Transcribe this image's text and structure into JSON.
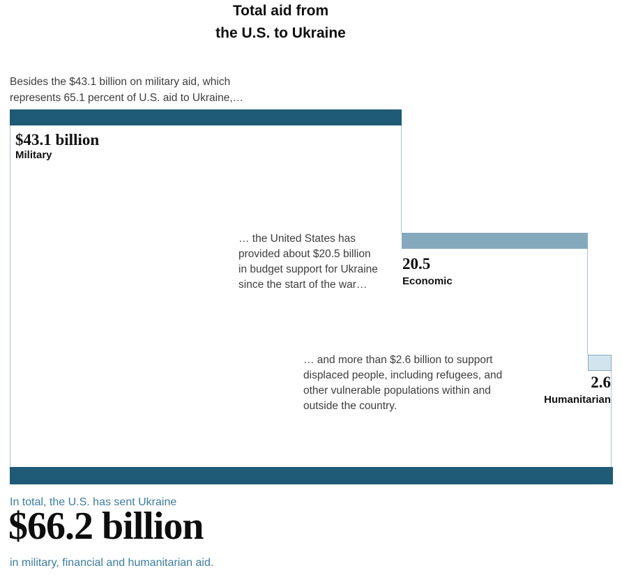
{
  "title": {
    "line1": "Total aid from",
    "line2": "the U.S. to Ukraine"
  },
  "intro": {
    "lines": [
      "Besides the $43.1 billion on military aid, which",
      "represents 65.1 percent of U.S. aid to Ukraine,…"
    ]
  },
  "military": {
    "value_label": "$43.1 billion",
    "category": "Military"
  },
  "economic": {
    "value_label": "20.5",
    "category": "Economic",
    "annotation": [
      "… the United States has",
      "provided about $20.5 billion",
      "in budget support for Ukraine",
      "since the start of the war…"
    ]
  },
  "humanitarian": {
    "value_label": "2.6",
    "category": "Humanitarian",
    "annotation": [
      "… and more than $2.6 billion to support",
      "displaced people, including refugees, and",
      "other vulnerable populations within and",
      "outside the country."
    ]
  },
  "summary": {
    "lead": "In total, the U.S. has sent Ukraine",
    "amount": "$66.2 billion",
    "tail": "in military, financial and humanitarian aid."
  },
  "colors": {
    "dark_teal_bar": "#1f5b76",
    "economic_bar": "#84a9bc",
    "humanitarian_bar_fill": "#d2e5ef",
    "humanitarian_bar_border": "#84a9bc",
    "connector_outline": "#a8c0cb",
    "summary_text_teal": "#3a7d9e",
    "annotation_text_gray": "#3d3d3d",
    "label_black": "#111111"
  },
  "chart_data": {
    "type": "bar",
    "subtype": "proportional-cascading-stacked-bar",
    "orientation": "horizontal",
    "title": "Total aid from the U.S. to Ukraine",
    "categories": [
      "Military",
      "Economic",
      "Humanitarian"
    ],
    "values": [
      43.1,
      20.5,
      2.6
    ],
    "value_labels": [
      "$43.1 billion",
      "20.5",
      "2.6"
    ],
    "unit": "billions of U.S. dollars",
    "total": 66.2,
    "total_label": "$66.2 billion",
    "shares_percent": [
      65.1,
      31.0,
      3.9
    ],
    "bar_colors": [
      "#1f5b76",
      "#84a9bc",
      "#d2e5ef"
    ],
    "total_bar_color": "#1f5b76",
    "legend": "none",
    "grid": false,
    "axes": "none",
    "annotations": [
      "Besides the $43.1 billion on military aid, which represents 65.1 percent of U.S. aid to Ukraine,…",
      "… the United States has provided about $20.5 billion in budget support for Ukraine since the start of the war…",
      "… and more than $2.6 billion to support displaced people, including refugees, and other vulnerable populations within and outside the country.",
      "In total, the U.S. has sent Ukraine $66.2 billion in military, financial and humanitarian aid."
    ]
  }
}
